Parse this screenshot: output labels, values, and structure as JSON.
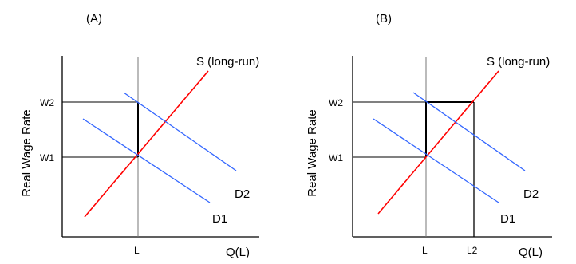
{
  "panels": [
    {
      "id": "A",
      "label": "(A)",
      "ylabel": "Real Wage Rate",
      "xlabel": "Q(L)",
      "y_ticks": [
        "W2",
        "W1"
      ],
      "x_ticks": [
        "L"
      ],
      "curves": {
        "supply": "S (long-run)",
        "demand_new": "D2",
        "demand_old": "D1"
      }
    },
    {
      "id": "B",
      "label": "(B)",
      "ylabel": "Real Wage Rate",
      "xlabel": "Q(L)",
      "y_ticks": [
        "W2",
        "W1"
      ],
      "x_ticks": [
        "L",
        "L2"
      ],
      "curves": {
        "supply": "S (long-run)",
        "demand_new": "D2",
        "demand_old": "D1"
      }
    }
  ],
  "colors": {
    "supply": "#ff0000",
    "demand": "#3366ff",
    "axis": "#000000",
    "guide": "#000000"
  }
}
